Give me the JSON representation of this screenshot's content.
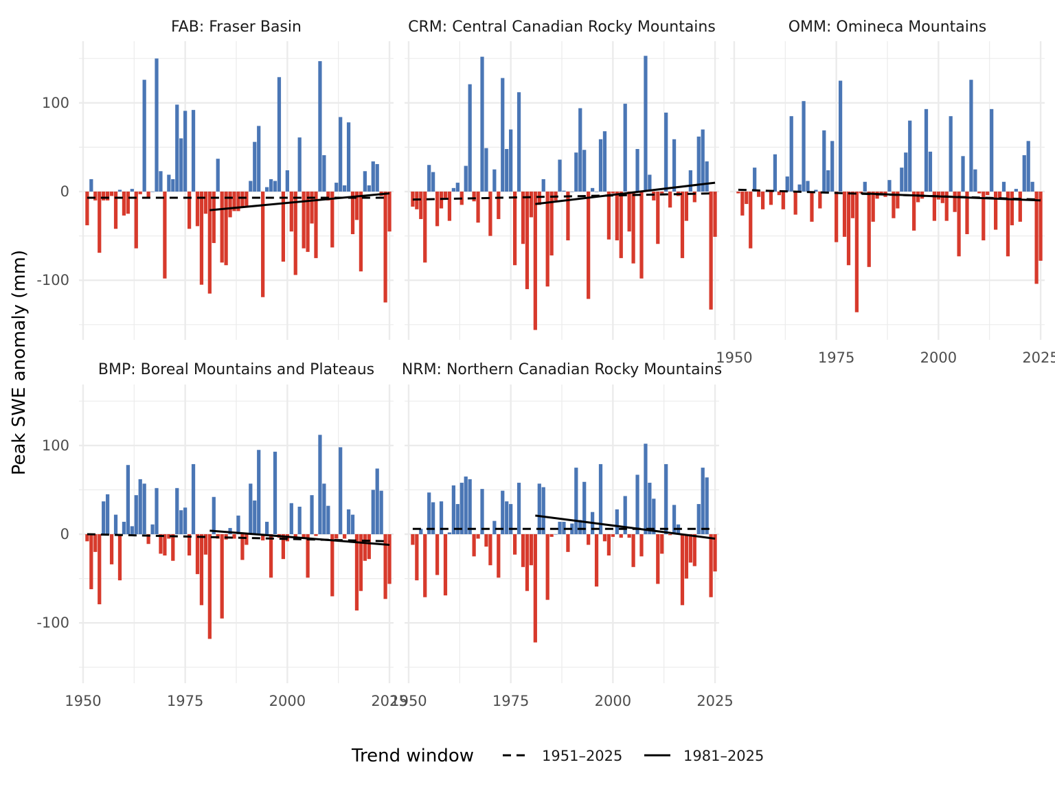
{
  "chart_data": {
    "type": "bar",
    "ylabel": "Peak SWE anomaly (mm)",
    "xlabel": "",
    "xlim": [
      1949,
      2026
    ],
    "ylim": [
      -165,
      170
    ],
    "x_ticks": [
      1950,
      1975,
      2000,
      2025
    ],
    "y_ticks": [
      -100,
      0,
      100
    ],
    "y_tick_labels": [
      "-100",
      "0",
      "100"
    ],
    "grid": true,
    "colors": {
      "positive": "#4a76b5",
      "negative": "#d73a2c",
      "trend": "#000000",
      "grid": "#ebebeb"
    },
    "legend": {
      "title": "Trend window",
      "placement": "bottom",
      "entries": [
        {
          "label": "1951–2025",
          "linetype": "dashed"
        },
        {
          "label": "1981–2025",
          "linetype": "solid"
        }
      ]
    },
    "years": [
      1951,
      1952,
      1953,
      1954,
      1955,
      1956,
      1957,
      1958,
      1959,
      1960,
      1961,
      1962,
      1963,
      1964,
      1965,
      1966,
      1967,
      1968,
      1969,
      1970,
      1971,
      1972,
      1973,
      1974,
      1975,
      1976,
      1977,
      1978,
      1979,
      1980,
      1981,
      1982,
      1983,
      1984,
      1985,
      1986,
      1987,
      1988,
      1989,
      1990,
      1991,
      1992,
      1993,
      1994,
      1995,
      1996,
      1997,
      1998,
      1999,
      2000,
      2001,
      2002,
      2003,
      2004,
      2005,
      2006,
      2007,
      2008,
      2009,
      2010,
      2011,
      2012,
      2013,
      2014,
      2015,
      2016,
      2017,
      2018,
      2019,
      2020,
      2021,
      2022,
      2023,
      2024,
      2025
    ],
    "panels": [
      {
        "title": "FAB: Fraser Basin",
        "values": [
          -38,
          14,
          -10,
          -69,
          -10,
          -10,
          -5,
          -42,
          2,
          -27,
          -25,
          3,
          -64,
          -3,
          126,
          -6,
          0,
          150,
          23,
          -98,
          19,
          14,
          98,
          60,
          91,
          -42,
          92,
          -39,
          -105,
          -25,
          -115,
          -58,
          37,
          -80,
          -83,
          -29,
          -22,
          -22,
          -18,
          -16,
          12,
          56,
          74,
          -119,
          5,
          14,
          12,
          129,
          -79,
          24,
          -45,
          -94,
          61,
          -64,
          -68,
          -36,
          -75,
          147,
          41,
          -10,
          -63,
          10,
          84,
          7,
          78,
          -48,
          -32,
          -90,
          23,
          7,
          34,
          31,
          -5,
          -125,
          -45
        ],
        "trend_1951_2025": [
          [
            1951,
            -7
          ],
          [
            2025,
            -7
          ]
        ],
        "trend_1981_2025": [
          [
            1981,
            -21
          ],
          [
            2025,
            -2
          ]
        ]
      },
      {
        "title": "CRM: Central Canadian Rocky Mountains",
        "values": [
          -17,
          -20,
          -31,
          -80,
          30,
          22,
          -39,
          -19,
          -7,
          -33,
          4,
          10,
          -15,
          29,
          121,
          -11,
          -35,
          152,
          49,
          -50,
          25,
          -31,
          128,
          48,
          70,
          -83,
          112,
          -59,
          -110,
          -29,
          -156,
          -15,
          14,
          -107,
          -72,
          -10,
          36,
          1,
          -55,
          0,
          44,
          94,
          47,
          -121,
          4,
          0,
          59,
          68,
          -54,
          -2,
          -55,
          -75,
          99,
          -45,
          -81,
          48,
          -98,
          153,
          19,
          -10,
          -59,
          -2,
          89,
          -18,
          59,
          -5,
          -75,
          -33,
          24,
          -12,
          62,
          70,
          34,
          -133,
          -51
        ],
        "trend_1951_2025": [
          [
            1951,
            -9
          ],
          [
            2025,
            -2
          ]
        ],
        "trend_1981_2025": [
          [
            1981,
            -14
          ],
          [
            2025,
            10
          ]
        ]
      },
      {
        "title": "OMM: Omineca Mountains",
        "values": [
          -2,
          -27,
          -14,
          -64,
          27,
          -6,
          -20,
          0,
          -15,
          42,
          -4,
          -20,
          17,
          85,
          -26,
          8,
          102,
          12,
          -34,
          2,
          -19,
          69,
          24,
          57,
          -57,
          125,
          -51,
          -83,
          -30,
          -136,
          -2,
          11,
          -85,
          -34,
          -8,
          -2,
          -6,
          13,
          -30,
          -19,
          27,
          44,
          80,
          -44,
          -12,
          -8,
          93,
          45,
          -33,
          -9,
          -13,
          -33,
          85,
          -23,
          -73,
          40,
          -48,
          126,
          25,
          -2,
          -55,
          -4,
          93,
          -43,
          -8,
          11,
          -73,
          -38,
          3,
          -34,
          41,
          57,
          11,
          -104,
          -78
        ],
        "trend_1951_2025": [
          [
            1951,
            2
          ],
          [
            2025,
            -9
          ]
        ],
        "trend_1981_2025": [
          [
            1981,
            -2
          ],
          [
            2025,
            -10
          ]
        ]
      },
      {
        "title": "BMP: Boreal Mountains and Plateaus",
        "values": [
          -8,
          -62,
          -20,
          -79,
          37,
          45,
          -34,
          22,
          -52,
          14,
          78,
          9,
          44,
          62,
          57,
          -11,
          11,
          52,
          -22,
          -24,
          -5,
          -30,
          52,
          27,
          30,
          -24,
          79,
          -45,
          -80,
          -23,
          -118,
          42,
          -5,
          -95,
          -6,
          7,
          -5,
          21,
          -29,
          -12,
          57,
          38,
          95,
          -7,
          14,
          -49,
          93,
          -4,
          -28,
          -8,
          35,
          -3,
          31,
          -4,
          -49,
          44,
          -2,
          112,
          57,
          32,
          -70,
          -5,
          98,
          -5,
          28,
          22,
          -86,
          -64,
          -30,
          -28,
          50,
          74,
          49,
          -73,
          -56
        ],
        "trend_1951_2025": [
          [
            1951,
            0
          ],
          [
            2025,
            -8
          ]
        ],
        "trend_1981_2025": [
          [
            1981,
            4
          ],
          [
            2025,
            -12
          ]
        ]
      },
      {
        "title": "NRM: Northern Canadian Rocky Mountains",
        "values": [
          -12,
          -52,
          6,
          -71,
          47,
          36,
          -46,
          37,
          -69,
          2,
          55,
          34,
          58,
          65,
          62,
          -25,
          -5,
          51,
          -14,
          -35,
          15,
          -49,
          49,
          37,
          34,
          -23,
          58,
          -37,
          -64,
          -35,
          -122,
          57,
          53,
          -74,
          -3,
          0,
          14,
          14,
          -20,
          12,
          75,
          16,
          59,
          -12,
          25,
          -59,
          79,
          -8,
          -24,
          -3,
          28,
          -4,
          43,
          -4,
          -37,
          67,
          -25,
          102,
          58,
          40,
          -56,
          -22,
          79,
          -1,
          33,
          11,
          -80,
          -50,
          -32,
          -36,
          34,
          75,
          64,
          -71,
          -42
        ],
        "trend_1951_2025": [
          [
            1951,
            6
          ],
          [
            2025,
            6
          ]
        ],
        "trend_1981_2025": [
          [
            1981,
            21
          ],
          [
            2025,
            -5
          ]
        ]
      }
    ]
  }
}
